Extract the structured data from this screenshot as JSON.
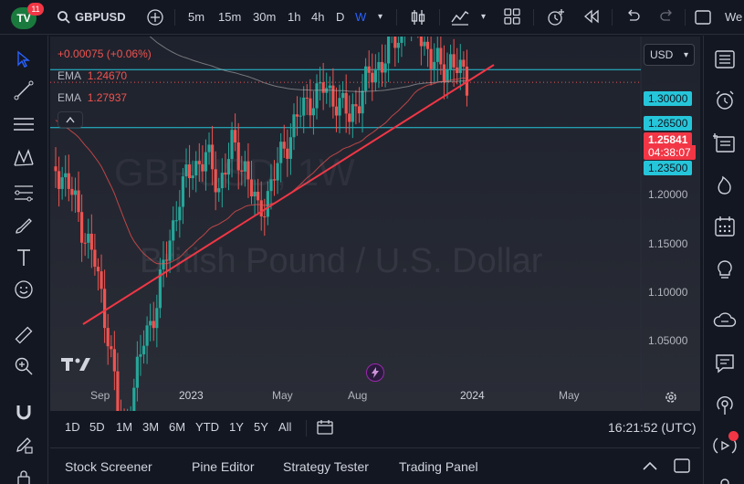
{
  "topbar": {
    "logo_text": "TV",
    "badge": "11",
    "symbol": "GBPUSD",
    "intervals": [
      "5m",
      "15m",
      "30m",
      "1h",
      "4h",
      "D",
      "W"
    ],
    "active_interval": "W",
    "right_label": "We"
  },
  "legend": {
    "change": "+0.00075 (+0.06%)",
    "ema1_label": "EMA",
    "ema1_value": "1.24670",
    "ema2_label": "EMA",
    "ema2_value": "1.27937"
  },
  "currency": "USD",
  "price_axis": {
    "labels": [
      "1.20000",
      "1.15000",
      "1.10000",
      "1.05000"
    ],
    "tag_high": "1.30000",
    "tag_mid": "1.26500",
    "tag_current": "1.25841",
    "tag_countdown": "04:38:07",
    "tag_low": "1.23500"
  },
  "time_axis": {
    "labels": [
      "Sep",
      "2023",
      "May",
      "Aug",
      "2024",
      "May"
    ]
  },
  "watermark": {
    "title": "British Pound / U.S. Dollar",
    "symbol": "GBPUSD, 1W"
  },
  "range_bar": {
    "items": [
      "1D",
      "5D",
      "1M",
      "3M",
      "6M",
      "YTD",
      "1Y",
      "5Y",
      "All"
    ],
    "clock": "16:21:52 (UTC)"
  },
  "bottom_panel": {
    "tabs": [
      "Stock Screener",
      "Pine Editor",
      "Strategy Tester",
      "Trading Panel"
    ]
  },
  "colors": {
    "up": "#26a69a",
    "down": "#ef5350",
    "ema_fast": "#f05050",
    "ema_slow": "#b0b0b0",
    "trendline": "#f23645",
    "hline": "#26c6da",
    "accent": "#2962ff"
  },
  "chart_data": {
    "type": "candlestick",
    "interval": "1W",
    "ylim": [
      1.02,
      1.345
    ],
    "horizontal_levels": [
      1.3,
      1.265,
      1.235
    ],
    "current_price": 1.25841
  }
}
